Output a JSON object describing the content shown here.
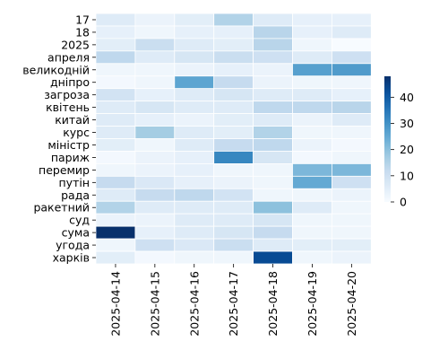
{
  "chart_data": {
    "type": "heatmap",
    "title": "",
    "xlabel": "",
    "ylabel": "",
    "x_categories": [
      "2025-04-14",
      "2025-04-15",
      "2025-04-16",
      "2025-04-17",
      "2025-04-18",
      "2025-04-19",
      "2025-04-20"
    ],
    "y_categories": [
      "17",
      "18",
      "2025",
      "апреля",
      "великодній",
      "дніпро",
      "загроза",
      "квітень",
      "китай",
      "курс",
      "міністр",
      "париж",
      "перемир",
      "путін",
      "рада",
      "ракетний",
      "суд",
      "сума",
      "угода",
      "харків"
    ],
    "values": [
      [
        6,
        3,
        5,
        15,
        6,
        4,
        4
      ],
      [
        4,
        2,
        4,
        4,
        14,
        4,
        6
      ],
      [
        5,
        11,
        6,
        5,
        14,
        2,
        0
      ],
      [
        13,
        6,
        8,
        11,
        10,
        6,
        10
      ],
      [
        2,
        2,
        3,
        4,
        3,
        27,
        28
      ],
      [
        1,
        2,
        26,
        12,
        3,
        2,
        2
      ],
      [
        9,
        4,
        6,
        8,
        6,
        6,
        4
      ],
      [
        6,
        8,
        6,
        6,
        13,
        13,
        14
      ],
      [
        6,
        4,
        3,
        5,
        6,
        3,
        6
      ],
      [
        6,
        17,
        6,
        5,
        15,
        2,
        2
      ],
      [
        5,
        2,
        6,
        12,
        13,
        3,
        1
      ],
      [
        1,
        3,
        4,
        32,
        8,
        1,
        2
      ],
      [
        2,
        3,
        4,
        2,
        2,
        22,
        22
      ],
      [
        12,
        7,
        4,
        3,
        2,
        25,
        10
      ],
      [
        6,
        12,
        13,
        9,
        2,
        2,
        3
      ],
      [
        15,
        6,
        6,
        6,
        20,
        6,
        2
      ],
      [
        3,
        3,
        6,
        6,
        8,
        2,
        2
      ],
      [
        48,
        4,
        6,
        8,
        12,
        2,
        2
      ],
      [
        2,
        10,
        7,
        11,
        6,
        5,
        5
      ],
      [
        5,
        1,
        2,
        2,
        43,
        2,
        3
      ]
    ],
    "colorbar": {
      "min": 0,
      "max": 48,
      "ticks": [
        0,
        10,
        20,
        30,
        40
      ],
      "colormap": "Blues"
    },
    "grid": false,
    "cell_border_color": "#ffffff"
  }
}
